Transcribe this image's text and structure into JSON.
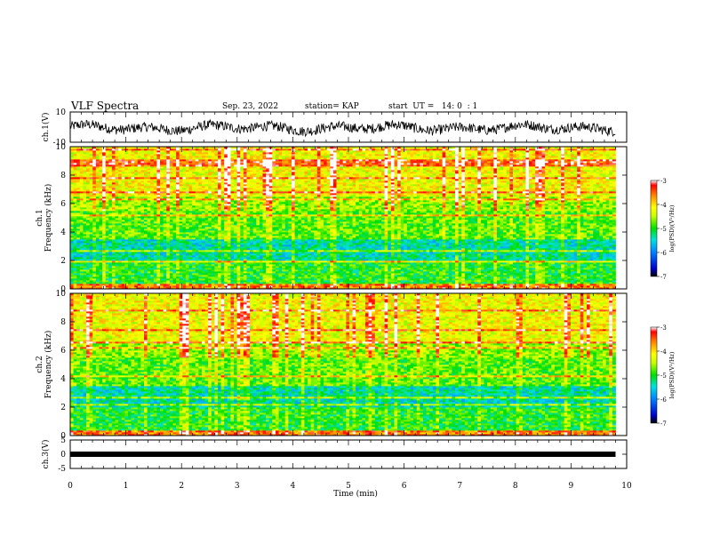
{
  "header": {
    "title": "VLF Spectra",
    "date": "Sep. 23, 2022",
    "station": "station= KAP",
    "start": "start  UT =   14: 0  : 1"
  },
  "chart_data": [
    {
      "type": "line",
      "name": "ch1-waveform",
      "ylabel": "ch.1(V)",
      "ylim": [
        -10,
        10
      ],
      "yticks": [
        10,
        -10
      ],
      "xlim": [
        0,
        10
      ],
      "x_end": 9.8,
      "baseline": -0.5,
      "amplitude": 3.0
    },
    {
      "type": "heatmap",
      "name": "ch1-spectrogram",
      "ylabel": "ch.1 Frequency (kHz)",
      "ylim": [
        0,
        10
      ],
      "yticks": [
        0,
        2,
        4,
        6,
        8,
        10
      ],
      "xlim": [
        0,
        10
      ],
      "x_end": 9.8,
      "colorbar": {
        "label": "log(PSD)(V²/Hz)",
        "ticks": [
          -3,
          -4,
          -5,
          -6,
          -7
        ],
        "range": [
          -7,
          -3
        ]
      }
    },
    {
      "type": "heatmap",
      "name": "ch2-spectrogram",
      "ylabel": "ch.2 Frequency (kHz)",
      "ylim": [
        0,
        10
      ],
      "yticks": [
        0,
        2,
        4,
        6,
        8,
        10
      ],
      "xlim": [
        0,
        10
      ],
      "x_end": 9.8,
      "colorbar": {
        "label": "log(PSD)(V²/Hz)",
        "ticks": [
          -3,
          -4,
          -5,
          -6,
          -7
        ],
        "range": [
          -7,
          -3
        ]
      }
    },
    {
      "type": "line",
      "name": "ch3-waveform",
      "ylabel": "ch.3(V)",
      "ylim": [
        -5,
        5
      ],
      "yticks": [
        5,
        0,
        -5
      ],
      "xlim": [
        0,
        10
      ],
      "x_end": 9.8,
      "baseline": 0,
      "amplitude": 0.3
    }
  ],
  "x_axis": {
    "label": "Time (min)",
    "ticks": [
      0,
      1,
      2,
      3,
      4,
      5,
      6,
      7,
      8,
      9,
      10
    ]
  },
  "colors": {
    "frame": "#000000",
    "background": "#ffffff"
  }
}
